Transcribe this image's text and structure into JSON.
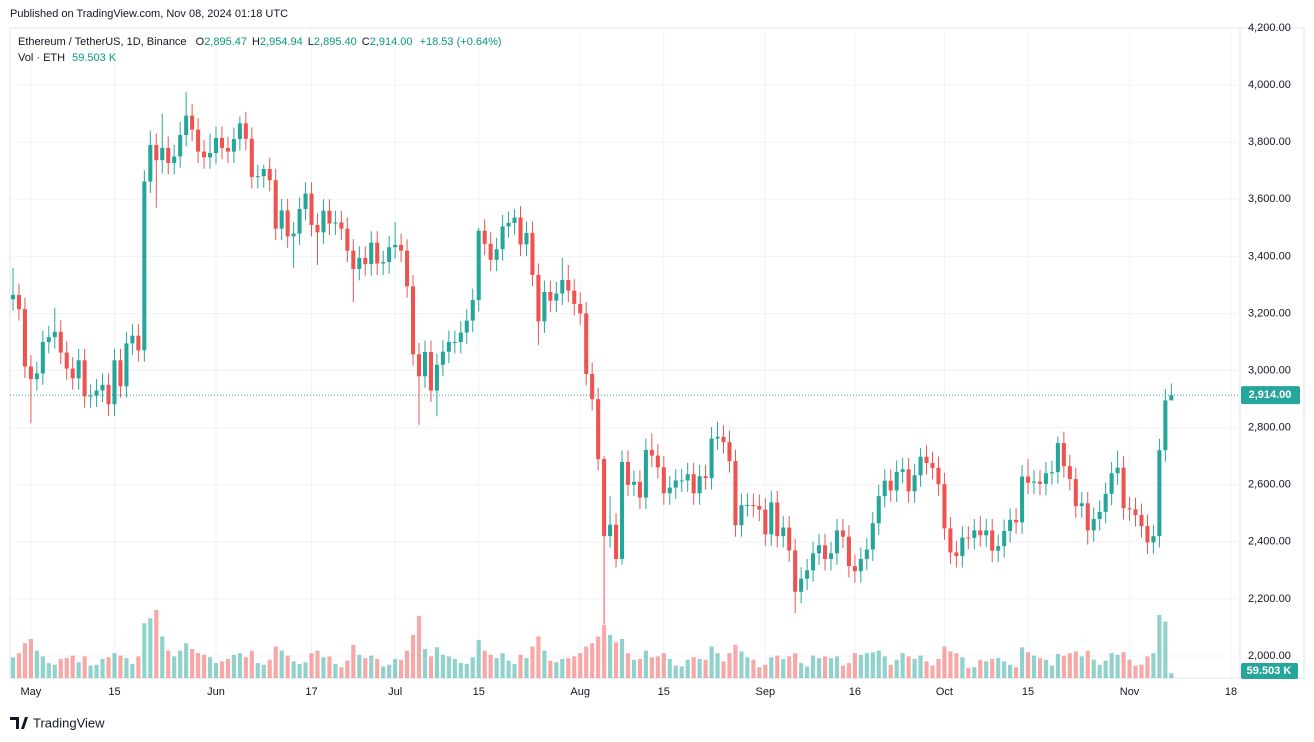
{
  "header": {
    "published": "Published on TradingView.com, Nov 08, 2024 01:18 UTC"
  },
  "footer": {
    "brand": "TradingView"
  },
  "chart_data": {
    "type": "candlestick",
    "legend": {
      "symbol": "Ethereum / TetherUS, 1D, Binance",
      "items": [
        {
          "key": "O",
          "value": "2,895.47"
        },
        {
          "key": "H",
          "value": "2,954.94"
        },
        {
          "key": "L",
          "value": "2,895.40"
        },
        {
          "key": "C",
          "value": "2,914.00"
        }
      ],
      "change": "+18.53 (+0.64%)",
      "volume": "Vol · ETH",
      "volume_value": "59.503 K"
    },
    "last_price_label": "2,914.00",
    "up_color": "#26a69a",
    "down_color": "#ef5350",
    "xlim": [
      -0.5,
      205.5
    ],
    "xticks": [
      {
        "value": 3,
        "label": "May"
      },
      {
        "value": 17,
        "label": "15"
      },
      {
        "value": 34,
        "label": "Jun"
      },
      {
        "value": 50,
        "label": "17"
      },
      {
        "value": 64,
        "label": "Jul"
      },
      {
        "value": 78,
        "label": "15"
      },
      {
        "value": 95,
        "label": "Aug"
      },
      {
        "value": 109,
        "label": "15"
      },
      {
        "value": 126,
        "label": "Sep"
      },
      {
        "value": 141,
        "label": "16"
      },
      {
        "value": 156,
        "label": "Oct"
      },
      {
        "value": 170,
        "label": "15"
      },
      {
        "value": 187,
        "label": "Nov"
      },
      {
        "value": 204,
        "label": "18"
      }
    ],
    "ylim": [
      1923,
      4263
    ],
    "yticks": [
      {
        "value": 2000,
        "label": "2,000.00"
      },
      {
        "value": 2200,
        "label": "2,200.00"
      },
      {
        "value": 2400,
        "label": "2,400.00"
      },
      {
        "value": 2600,
        "label": "2,600.00"
      },
      {
        "value": 2800,
        "label": "2,800.00"
      },
      {
        "value": 3000,
        "label": "3,000.00"
      },
      {
        "value": 3200,
        "label": "3,200.00"
      },
      {
        "value": 3400,
        "label": "3,400.00"
      },
      {
        "value": 3600,
        "label": "3,600.00"
      },
      {
        "value": 3800,
        "label": "3,800.00"
      },
      {
        "value": 4000,
        "label": "4,000.00"
      },
      {
        "value": 4200,
        "label": "4,200.00"
      }
    ],
    "grid": true,
    "open": [
      3250,
      3265,
      3215,
      3014,
      2970,
      2990,
      3100,
      3117,
      3136,
      3063,
      3007,
      2973,
      3036,
      2910,
      2912,
      2930,
      2950,
      2882,
      3036,
      2945,
      3095,
      3122,
      3071,
      3662,
      3790,
      3737,
      3780,
      3727,
      3750,
      3825,
      3893,
      3844,
      3767,
      3747,
      3762,
      3815,
      3780,
      3767,
      3811,
      3866,
      3812,
      3678,
      3681,
      3706,
      3667,
      3497,
      3561,
      3470,
      3480,
      3566,
      3620,
      3510,
      3484,
      3560,
      3515,
      3519,
      3497,
      3420,
      3356,
      3395,
      3373,
      3448,
      3375,
      3380,
      3432,
      3440,
      3420,
      3295,
      3057,
      2980,
      3065,
      2930,
      3020,
      3066,
      3100,
      3100,
      3133,
      3175,
      3247,
      3490,
      3444,
      3388,
      3425,
      3505,
      3517,
      3536,
      3442,
      3482,
      3335,
      3172,
      3275,
      3245,
      3270,
      3317,
      3280,
      3233,
      3200,
      2988,
      2900,
      2690,
      2420,
      2460,
      2340,
      2680,
      2600,
      2610,
      2555,
      2722,
      2702,
      2661,
      2570,
      2590,
      2615,
      2615,
      2637,
      2570,
      2630,
      2623,
      2762,
      2768,
      2749,
      2683,
      2458,
      2528,
      2529,
      2526,
      2513,
      2426,
      2538,
      2420,
      2450,
      2370,
      2225,
      2271,
      2300,
      2360,
      2388,
      2340,
      2360,
      2440,
      2418,
      2315,
      2297,
      2340,
      2373,
      2465,
      2560,
      2614,
      2580,
      2645,
      2654,
      2577,
      2633,
      2698,
      2676,
      2659,
      2602,
      2447,
      2363,
      2350,
      2415,
      2414,
      2440,
      2423,
      2440,
      2369,
      2385,
      2438,
      2477,
      2468,
      2629,
      2607,
      2611,
      2603,
      2640,
      2644,
      2746,
      2665,
      2620,
      2525,
      2535,
      2440,
      2480,
      2505,
      2568,
      2640,
      2660,
      2518,
      2514,
      2494,
      2455,
      2398,
      2420,
      2721,
      2895.47
    ],
    "high": [
      3360,
      3305,
      3255,
      3054,
      3030,
      3140,
      3157,
      3220,
      3176,
      3103,
      3047,
      3076,
      3076,
      2952,
      2970,
      2990,
      2990,
      3076,
      3076,
      3135,
      3162,
      3162,
      3702,
      3840,
      3830,
      3900,
      3820,
      3790,
      3870,
      3975,
      3933,
      3884,
      3807,
      3830,
      3855,
      3855,
      3820,
      3851,
      3890,
      3906,
      3852,
      3721,
      3721,
      3746,
      3707,
      3601,
      3601,
      3520,
      3606,
      3660,
      3660,
      3550,
      3600,
      3600,
      3559,
      3559,
      3537,
      3460,
      3435,
      3435,
      3488,
      3488,
      3420,
      3472,
      3520,
      3480,
      3460,
      3335,
      3097,
      3105,
      3105,
      3060,
      3106,
      3140,
      3140,
      3173,
      3215,
      3287,
      3500,
      3530,
      3484,
      3465,
      3545,
      3557,
      3565,
      3576,
      3522,
      3522,
      3375,
      3315,
      3315,
      3310,
      3395,
      3370,
      3320,
      3273,
      3240,
      3028,
      2940,
      2700,
      2560,
      2500,
      2720,
      2720,
      2650,
      2650,
      2762,
      2780,
      2742,
      2701,
      2630,
      2655,
      2655,
      2677,
      2677,
      2670,
      2670,
      2802,
      2820,
      2808,
      2789,
      2723,
      2568,
      2569,
      2569,
      2566,
      2553,
      2578,
      2578,
      2490,
      2490,
      2410,
      2311,
      2340,
      2400,
      2428,
      2428,
      2400,
      2480,
      2480,
      2458,
      2355,
      2380,
      2413,
      2505,
      2600,
      2654,
      2654,
      2685,
      2694,
      2694,
      2673,
      2728,
      2738,
      2716,
      2699,
      2642,
      2487,
      2403,
      2455,
      2455,
      2480,
      2490,
      2480,
      2480,
      2425,
      2478,
      2517,
      2517,
      2669,
      2690,
      2651,
      2651,
      2680,
      2684,
      2769,
      2786,
      2705,
      2660,
      2575,
      2575,
      2520,
      2545,
      2608,
      2680,
      2720,
      2700,
      2558,
      2554,
      2534,
      2495,
      2460,
      2761,
      2935,
      2954.94
    ],
    "low": [
      3210,
      3175,
      2974,
      2815,
      2930,
      2950,
      3060,
      3077,
      3023,
      2967,
      2933,
      2933,
      2870,
      2870,
      2872,
      2890,
      2842,
      2842,
      2905,
      2905,
      3055,
      3031,
      3031,
      3622,
      3570,
      3690,
      3687,
      3687,
      3710,
      3785,
      3804,
      3727,
      3707,
      3707,
      3722,
      3740,
      3727,
      3727,
      3771,
      3772,
      3638,
      3638,
      3641,
      3627,
      3457,
      3457,
      3430,
      3360,
      3440,
      3526,
      3470,
      3370,
      3444,
      3475,
      3475,
      3457,
      3380,
      3240,
      3316,
      3333,
      3333,
      3335,
      3335,
      3340,
      3392,
      3380,
      3255,
      3017,
      2810,
      2940,
      2890,
      2840,
      2980,
      3026,
      3060,
      3060,
      3093,
      3135,
      3207,
      3404,
      3348,
      3348,
      3385,
      3465,
      3477,
      3402,
      3402,
      3295,
      3090,
      3132,
      3205,
      3205,
      3230,
      3240,
      3193,
      3160,
      2948,
      2860,
      2650,
      2111,
      2380,
      2310,
      2320,
      2560,
      2560,
      2515,
      2515,
      2662,
      2621,
      2530,
      2530,
      2550,
      2575,
      2575,
      2530,
      2530,
      2583,
      2583,
      2722,
      2709,
      2643,
      2418,
      2418,
      2488,
      2486,
      2473,
      2386,
      2386,
      2380,
      2380,
      2330,
      2150,
      2185,
      2231,
      2260,
      2320,
      2300,
      2300,
      2320,
      2378,
      2275,
      2257,
      2257,
      2300,
      2333,
      2425,
      2520,
      2540,
      2540,
      2605,
      2537,
      2537,
      2593,
      2636,
      2619,
      2562,
      2407,
      2323,
      2310,
      2310,
      2374,
      2374,
      2383,
      2383,
      2329,
      2329,
      2345,
      2398,
      2428,
      2428,
      2567,
      2567,
      2563,
      2563,
      2600,
      2604,
      2625,
      2580,
      2485,
      2485,
      2390,
      2400,
      2440,
      2465,
      2528,
      2600,
      2478,
      2474,
      2454,
      2415,
      2358,
      2358,
      2380,
      2681,
      2895.4
    ],
    "close": [
      3265,
      3215,
      3014,
      2970,
      2990,
      3100,
      3117,
      3136,
      3063,
      3007,
      2973,
      3036,
      2910,
      2912,
      2930,
      2950,
      2882,
      3036,
      2945,
      3095,
      3122,
      3071,
      3662,
      3790,
      3737,
      3780,
      3727,
      3750,
      3825,
      3893,
      3844,
      3767,
      3747,
      3762,
      3815,
      3780,
      3767,
      3811,
      3866,
      3812,
      3678,
      3681,
      3706,
      3667,
      3497,
      3561,
      3470,
      3480,
      3566,
      3620,
      3510,
      3484,
      3560,
      3515,
      3519,
      3497,
      3420,
      3356,
      3395,
      3373,
      3448,
      3375,
      3380,
      3432,
      3440,
      3420,
      3295,
      3057,
      2980,
      3065,
      2930,
      3020,
      3066,
      3100,
      3100,
      3133,
      3175,
      3247,
      3490,
      3444,
      3388,
      3425,
      3505,
      3517,
      3536,
      3442,
      3482,
      3335,
      3172,
      3275,
      3245,
      3270,
      3317,
      3280,
      3233,
      3200,
      2988,
      2900,
      2690,
      2420,
      2460,
      2340,
      2680,
      2600,
      2610,
      2555,
      2722,
      2702,
      2661,
      2570,
      2590,
      2615,
      2615,
      2637,
      2570,
      2630,
      2623,
      2762,
      2768,
      2749,
      2683,
      2458,
      2528,
      2529,
      2526,
      2513,
      2426,
      2538,
      2420,
      2450,
      2370,
      2225,
      2271,
      2300,
      2360,
      2388,
      2340,
      2360,
      2440,
      2418,
      2315,
      2297,
      2340,
      2373,
      2465,
      2560,
      2614,
      2580,
      2645,
      2654,
      2577,
      2633,
      2698,
      2676,
      2659,
      2602,
      2447,
      2363,
      2350,
      2415,
      2414,
      2440,
      2423,
      2440,
      2369,
      2385,
      2438,
      2477,
      2468,
      2629,
      2607,
      2611,
      2603,
      2640,
      2644,
      2746,
      2665,
      2620,
      2525,
      2535,
      2440,
      2480,
      2505,
      2568,
      2640,
      2660,
      2518,
      2514,
      2494,
      2455,
      2398,
      2420,
      2721,
      2895.47,
      2914
    ],
    "volume": [
      250000,
      300000,
      420000,
      470000,
      330000,
      260000,
      180000,
      160000,
      230000,
      240000,
      270000,
      190000,
      260000,
      150000,
      160000,
      230000,
      250000,
      300000,
      270000,
      240000,
      170000,
      260000,
      660000,
      720000,
      820000,
      500000,
      330000,
      260000,
      330000,
      420000,
      350000,
      300000,
      280000,
      250000,
      180000,
      200000,
      230000,
      280000,
      300000,
      250000,
      330000,
      180000,
      160000,
      220000,
      380000,
      330000,
      270000,
      200000,
      170000,
      190000,
      300000,
      330000,
      250000,
      260000,
      170000,
      130000,
      210000,
      400000,
      280000,
      240000,
      270000,
      230000,
      140000,
      160000,
      230000,
      220000,
      330000,
      520000,
      750000,
      350000,
      260000,
      370000,
      280000,
      260000,
      230000,
      180000,
      170000,
      250000,
      460000,
      330000,
      280000,
      240000,
      300000,
      210000,
      170000,
      280000,
      240000,
      380000,
      500000,
      330000,
      210000,
      190000,
      230000,
      240000,
      260000,
      300000,
      380000,
      420000,
      500000,
      640000,
      520000,
      430000,
      470000,
      300000,
      220000,
      230000,
      330000,
      250000,
      260000,
      300000,
      230000,
      150000,
      140000,
      220000,
      250000,
      230000,
      220000,
      380000,
      300000,
      200000,
      300000,
      400000,
      320000,
      250000,
      220000,
      130000,
      160000,
      250000,
      270000,
      230000,
      260000,
      300000,
      180000,
      140000,
      270000,
      240000,
      260000,
      240000,
      260000,
      150000,
      180000,
      300000,
      280000,
      300000,
      310000,
      330000,
      260000,
      160000,
      220000,
      300000,
      260000,
      230000,
      270000,
      200000,
      150000,
      230000,
      380000,
      320000,
      300000,
      250000,
      120000,
      130000,
      220000,
      200000,
      230000,
      240000,
      200000,
      160000,
      130000,
      370000,
      310000,
      270000,
      240000,
      220000,
      150000,
      290000,
      270000,
      300000,
      320000,
      260000,
      330000,
      220000,
      160000,
      210000,
      300000,
      280000,
      310000,
      220000,
      150000,
      160000,
      260000,
      300000,
      760000,
      680000,
      59503
    ]
  }
}
